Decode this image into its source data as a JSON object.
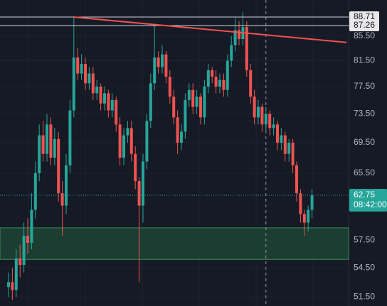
{
  "chart_data": {
    "type": "candlestick",
    "log_scale": true,
    "grid": true,
    "ylim": [
      50.6,
      91.7
    ],
    "yticks": [
      {
        "value": 51.5,
        "label": "51.50"
      },
      {
        "value": 54.5,
        "label": "54.50"
      },
      {
        "value": 57.5,
        "label": "57.50"
      },
      {
        "value": 65.5,
        "label": "65.50"
      },
      {
        "value": 69.5,
        "label": "69.50"
      },
      {
        "value": 73.5,
        "label": "73.50"
      },
      {
        "value": 77.5,
        "label": "77.50"
      },
      {
        "value": 81.5,
        "label": "81.50"
      },
      {
        "value": 85.5,
        "label": "85.50"
      }
    ],
    "up_color": "#26a69a",
    "down_color": "#ef5350",
    "open": [
      52.5,
      53.0,
      52.2,
      55.5,
      54.8,
      58.0,
      57.2,
      61.0,
      65.5,
      70.5,
      68.0,
      72.0,
      67.5,
      70.0,
      63.0,
      61.5,
      66.5,
      74.0,
      82.0,
      79.5,
      81.0,
      78.0,
      79.5,
      76.5,
      77.5,
      75.0,
      76.5,
      74.0,
      75.5,
      72.0,
      67.5,
      70.5,
      71.5,
      68.0,
      64.5,
      61.5,
      67.0,
      72.5,
      78.0,
      82.0,
      80.5,
      82.5,
      79.0,
      76.0,
      73.0,
      69.5,
      71.0,
      75.5,
      77.0,
      74.5,
      76.0,
      73.0,
      77.5,
      80.0,
      79.0,
      77.5,
      78.5,
      77.0,
      81.5,
      84.0,
      86.5,
      85.0,
      87.0,
      80.0,
      76.0,
      73.0,
      74.5,
      72.0,
      73.5,
      71.5,
      72.0,
      69.5,
      70.5,
      68.0,
      69.5,
      66.5,
      63.0,
      60.5,
      59.5,
      61.0
    ],
    "high": [
      54.0,
      54.5,
      56.5,
      57.0,
      59.5,
      60.0,
      63.0,
      67.0,
      72.0,
      72.5,
      73.5,
      73.0,
      71.5,
      71.0,
      64.5,
      68.0,
      75.5,
      88.71,
      83.5,
      82.5,
      82.0,
      80.5,
      80.5,
      78.5,
      78.0,
      77.5,
      77.0,
      76.5,
      76.0,
      73.0,
      71.5,
      72.5,
      72.5,
      69.0,
      65.0,
      68.0,
      73.5,
      79.5,
      87.26,
      83.0,
      84.0,
      83.0,
      80.0,
      77.0,
      74.0,
      72.0,
      76.5,
      78.0,
      78.0,
      77.0,
      76.5,
      78.5,
      81.0,
      80.5,
      80.0,
      79.5,
      79.5,
      82.5,
      85.5,
      88.5,
      88.0,
      89.6,
      88.0,
      81.0,
      77.0,
      75.5,
      75.0,
      74.5,
      74.0,
      73.0,
      72.5,
      71.5,
      71.0,
      70.0,
      70.0,
      67.0,
      63.5,
      61.0,
      61.5,
      63.5
    ],
    "low": [
      51.5,
      51.2,
      51.5,
      53.5,
      54.0,
      56.0,
      56.5,
      60.0,
      64.5,
      67.0,
      67.0,
      66.5,
      66.5,
      62.0,
      58.0,
      60.5,
      65.5,
      73.0,
      78.5,
      78.5,
      77.0,
      77.0,
      75.5,
      75.5,
      74.0,
      74.0,
      73.0,
      73.0,
      71.0,
      66.5,
      66.5,
      69.5,
      67.0,
      63.5,
      53.0,
      59.5,
      66.0,
      71.5,
      77.0,
      79.5,
      79.5,
      78.0,
      75.0,
      72.0,
      68.0,
      68.5,
      70.0,
      74.5,
      73.5,
      73.5,
      72.0,
      72.0,
      76.5,
      78.0,
      76.5,
      76.5,
      76.0,
      76.0,
      80.5,
      83.0,
      84.0,
      84.0,
      79.0,
      75.0,
      72.0,
      72.0,
      71.0,
      71.0,
      70.5,
      70.5,
      68.5,
      68.5,
      67.0,
      67.0,
      65.5,
      62.0,
      59.5,
      58.0,
      58.5,
      60.0
    ],
    "close": [
      53.0,
      52.2,
      55.5,
      54.8,
      58.0,
      57.2,
      61.0,
      65.5,
      70.5,
      68.0,
      72.0,
      67.5,
      70.0,
      63.0,
      61.5,
      66.5,
      74.0,
      82.0,
      79.5,
      81.0,
      78.0,
      79.5,
      76.5,
      77.5,
      75.0,
      76.5,
      74.0,
      75.5,
      72.0,
      67.5,
      70.5,
      71.5,
      68.0,
      64.5,
      61.5,
      67.0,
      72.5,
      78.0,
      82.0,
      80.5,
      82.5,
      79.0,
      76.0,
      73.0,
      69.5,
      71.0,
      75.5,
      77.0,
      74.5,
      76.0,
      73.0,
      77.5,
      80.0,
      79.0,
      77.5,
      78.5,
      77.0,
      81.5,
      84.0,
      86.5,
      85.0,
      87.0,
      80.0,
      76.0,
      73.0,
      74.5,
      72.0,
      73.5,
      71.5,
      72.0,
      69.5,
      70.5,
      68.0,
      69.5,
      66.5,
      63.0,
      60.5,
      59.5,
      61.0,
      62.75
    ],
    "price_lines": [
      {
        "value": 88.71,
        "label": "88.71"
      },
      {
        "value": 87.26,
        "label": "87.26"
      }
    ],
    "current_price": {
      "value": 62.75,
      "label": "62.75",
      "time": "08:42:00",
      "color": "#26a69a"
    },
    "trendline": {
      "start_index": 17,
      "start_price": 88.71,
      "end_index": 88,
      "end_price": 84.45,
      "color": "#f0524f"
    },
    "zone": {
      "low": 55.4,
      "high": 58.9,
      "color": "#1f4a36"
    },
    "cursor_index": 67
  }
}
